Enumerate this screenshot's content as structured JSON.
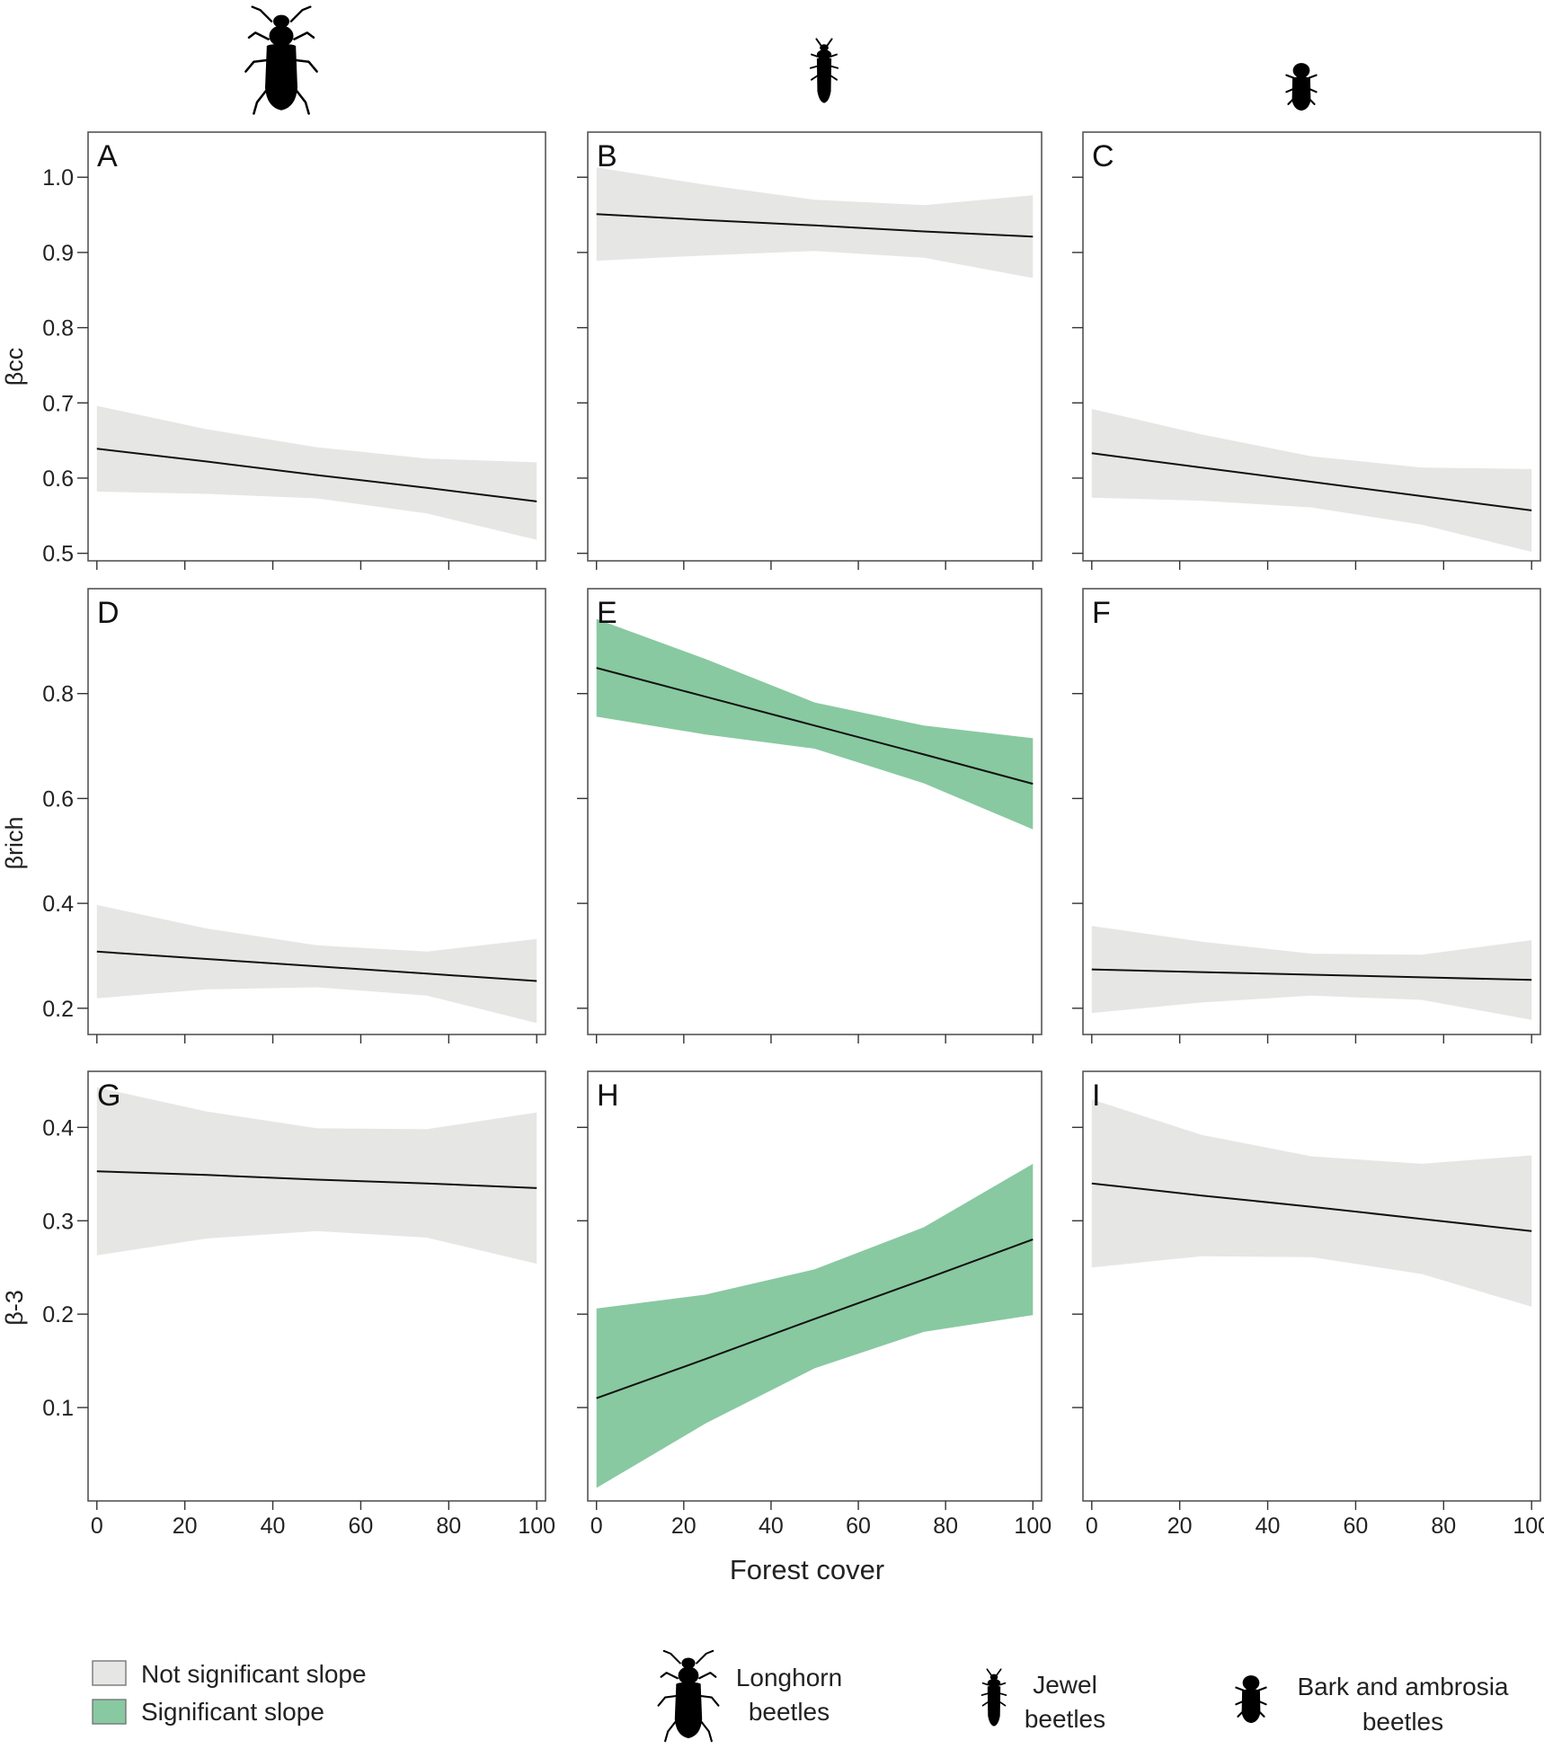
{
  "figure": {
    "x_axis_title": "Forest cover",
    "row_y_titles": [
      "βcc",
      "βrich",
      "β-3"
    ],
    "legend": {
      "not_significant": "Not significant slope",
      "significant": "Significant slope"
    },
    "taxa": [
      {
        "icon": "longhorn-beetle-icon",
        "line1": "Longhorn",
        "line2": "beetles"
      },
      {
        "icon": "jewel-beetle-icon",
        "line1": "Jewel",
        "line2": "beetles"
      },
      {
        "icon": "bark-beetle-icon",
        "line1": "Bark and ambrosia",
        "line2": "beetles"
      }
    ]
  },
  "colors": {
    "not_significant_fill": "#e6e6e5",
    "significant_fill": "#88c9a1",
    "fit_line": "#111111"
  },
  "chart_data": [
    {
      "type": "line",
      "panel": "A",
      "row": 0,
      "col": 0,
      "significant": false,
      "xlim": [
        -2,
        102
      ],
      "ylim": [
        0.49,
        1.06
      ],
      "xticks": [
        0,
        20,
        40,
        60,
        80,
        100
      ],
      "yticks": [
        0.5,
        0.6,
        0.7,
        0.8,
        0.9,
        1.0
      ],
      "show_ytick_labels": true,
      "show_xtick_labels": false,
      "x": [
        0,
        25,
        50,
        75,
        100
      ],
      "y": [
        0.639,
        0.622,
        0.604,
        0.587,
        0.569
      ],
      "ci_lower": [
        0.582,
        0.579,
        0.573,
        0.553,
        0.518
      ],
      "ci_upper": [
        0.696,
        0.665,
        0.641,
        0.626,
        0.621
      ]
    },
    {
      "type": "line",
      "panel": "B",
      "row": 0,
      "col": 1,
      "significant": false,
      "xlim": [
        -2,
        102
      ],
      "ylim": [
        0.49,
        1.06
      ],
      "xticks": [
        0,
        20,
        40,
        60,
        80,
        100
      ],
      "yticks": [
        0.5,
        0.6,
        0.7,
        0.8,
        0.9,
        1.0
      ],
      "show_ytick_labels": false,
      "show_xtick_labels": false,
      "x": [
        0,
        25,
        50,
        75,
        100
      ],
      "y": [
        0.951,
        0.943,
        0.936,
        0.928,
        0.921
      ],
      "ci_lower": [
        0.889,
        0.896,
        0.902,
        0.893,
        0.866
      ],
      "ci_upper": [
        1.013,
        0.99,
        0.97,
        0.963,
        0.976
      ]
    },
    {
      "type": "line",
      "panel": "C",
      "row": 0,
      "col": 2,
      "significant": false,
      "xlim": [
        -2,
        102
      ],
      "ylim": [
        0.49,
        1.06
      ],
      "xticks": [
        0,
        20,
        40,
        60,
        80,
        100
      ],
      "yticks": [
        0.5,
        0.6,
        0.7,
        0.8,
        0.9,
        1.0
      ],
      "show_ytick_labels": false,
      "show_xtick_labels": false,
      "x": [
        0,
        25,
        50,
        75,
        100
      ],
      "y": [
        0.633,
        0.614,
        0.595,
        0.576,
        0.557
      ],
      "ci_lower": [
        0.574,
        0.57,
        0.561,
        0.538,
        0.502
      ],
      "ci_upper": [
        0.692,
        0.658,
        0.629,
        0.614,
        0.612
      ]
    },
    {
      "type": "line",
      "panel": "D",
      "row": 1,
      "col": 0,
      "significant": false,
      "xlim": [
        -2,
        102
      ],
      "ylim": [
        0.15,
        1.0
      ],
      "xticks": [
        0,
        20,
        40,
        60,
        80,
        100
      ],
      "yticks": [
        0.2,
        0.4,
        0.6,
        0.8
      ],
      "show_ytick_labels": true,
      "show_xtick_labels": false,
      "x": [
        0,
        25,
        50,
        75,
        100
      ],
      "y": [
        0.308,
        0.294,
        0.28,
        0.266,
        0.252
      ],
      "ci_lower": [
        0.219,
        0.236,
        0.24,
        0.224,
        0.172
      ],
      "ci_upper": [
        0.397,
        0.352,
        0.32,
        0.308,
        0.332
      ]
    },
    {
      "type": "line",
      "panel": "E",
      "row": 1,
      "col": 1,
      "significant": true,
      "xlim": [
        -2,
        102
      ],
      "ylim": [
        0.15,
        1.0
      ],
      "xticks": [
        0,
        20,
        40,
        60,
        80,
        100
      ],
      "yticks": [
        0.2,
        0.4,
        0.6,
        0.8
      ],
      "show_ytick_labels": false,
      "show_xtick_labels": false,
      "x": [
        0,
        25,
        50,
        75,
        100
      ],
      "y": [
        0.849,
        0.794,
        0.739,
        0.684,
        0.628
      ],
      "ci_lower": [
        0.756,
        0.722,
        0.695,
        0.629,
        0.541
      ],
      "ci_upper": [
        0.942,
        0.866,
        0.783,
        0.739,
        0.715
      ]
    },
    {
      "type": "line",
      "panel": "F",
      "row": 1,
      "col": 2,
      "significant": false,
      "xlim": [
        -2,
        102
      ],
      "ylim": [
        0.15,
        1.0
      ],
      "xticks": [
        0,
        20,
        40,
        60,
        80,
        100
      ],
      "yticks": [
        0.2,
        0.4,
        0.6,
        0.8
      ],
      "show_ytick_labels": false,
      "show_xtick_labels": false,
      "x": [
        0,
        25,
        50,
        75,
        100
      ],
      "y": [
        0.274,
        0.269,
        0.264,
        0.259,
        0.254
      ],
      "ci_lower": [
        0.191,
        0.211,
        0.224,
        0.216,
        0.178
      ],
      "ci_upper": [
        0.357,
        0.327,
        0.304,
        0.302,
        0.33
      ]
    },
    {
      "type": "line",
      "panel": "G",
      "row": 2,
      "col": 0,
      "significant": false,
      "xlim": [
        -2,
        102
      ],
      "ylim": [
        0.0,
        0.46
      ],
      "xticks": [
        0,
        20,
        40,
        60,
        80,
        100
      ],
      "yticks": [
        0.1,
        0.2,
        0.3,
        0.4
      ],
      "show_ytick_labels": true,
      "show_xtick_labels": true,
      "x": [
        0,
        25,
        50,
        75,
        100
      ],
      "y": [
        0.353,
        0.349,
        0.344,
        0.34,
        0.335
      ],
      "ci_lower": [
        0.263,
        0.281,
        0.289,
        0.282,
        0.254
      ],
      "ci_upper": [
        0.443,
        0.417,
        0.399,
        0.398,
        0.416
      ]
    },
    {
      "type": "line",
      "panel": "H",
      "row": 2,
      "col": 1,
      "significant": true,
      "xlim": [
        -2,
        102
      ],
      "ylim": [
        0.0,
        0.46
      ],
      "xticks": [
        0,
        20,
        40,
        60,
        80,
        100
      ],
      "yticks": [
        0.1,
        0.2,
        0.3,
        0.4
      ],
      "show_ytick_labels": false,
      "show_xtick_labels": true,
      "x": [
        0,
        25,
        50,
        75,
        100
      ],
      "y": [
        0.11,
        0.152,
        0.195,
        0.237,
        0.28
      ],
      "ci_lower": [
        0.014,
        0.083,
        0.142,
        0.181,
        0.199
      ],
      "ci_upper": [
        0.206,
        0.221,
        0.248,
        0.293,
        0.361
      ]
    },
    {
      "type": "line",
      "panel": "I",
      "row": 2,
      "col": 2,
      "significant": false,
      "xlim": [
        -2,
        102
      ],
      "ylim": [
        0.0,
        0.46
      ],
      "xticks": [
        0,
        20,
        40,
        60,
        80,
        100
      ],
      "yticks": [
        0.1,
        0.2,
        0.3,
        0.4
      ],
      "show_ytick_labels": false,
      "show_xtick_labels": true,
      "x": [
        0,
        25,
        50,
        75,
        100
      ],
      "y": [
        0.34,
        0.327,
        0.315,
        0.302,
        0.289
      ],
      "ci_lower": [
        0.25,
        0.262,
        0.261,
        0.243,
        0.208
      ],
      "ci_upper": [
        0.43,
        0.392,
        0.369,
        0.361,
        0.37
      ]
    }
  ]
}
